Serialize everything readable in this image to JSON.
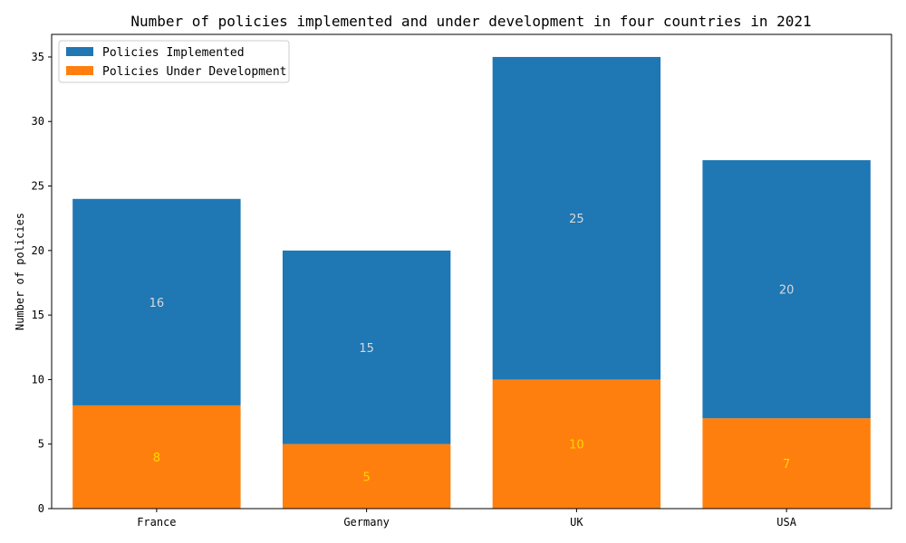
{
  "chart_data": {
    "type": "bar",
    "stacked": true,
    "title": "Number of policies implemented and under development in four countries in 2021",
    "xlabel": "",
    "ylabel": "Number of policies",
    "categories": [
      "France",
      "Germany",
      "UK",
      "USA"
    ],
    "ylim": [
      0,
      36.75
    ],
    "yticks": [
      0,
      5,
      10,
      15,
      20,
      25,
      30,
      35
    ],
    "grid": false,
    "legend_position": "top-left",
    "series": [
      {
        "name": "Policies Under Development",
        "values": [
          8,
          5,
          10,
          7
        ],
        "color": "#ff7f0e",
        "label_color": "#ffd700"
      },
      {
        "name": "Policies Implemented",
        "values": [
          16,
          15,
          25,
          20
        ],
        "color": "#1f77b4",
        "label_color": "#d8d8d8"
      }
    ],
    "legend_order": [
      1,
      0
    ]
  }
}
